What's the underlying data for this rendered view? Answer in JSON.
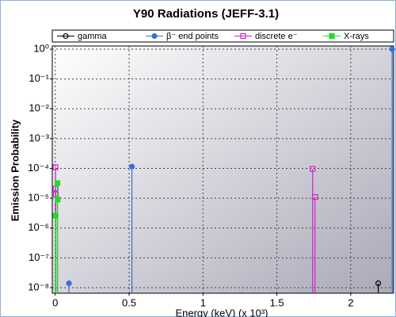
{
  "chart_data": {
    "type": "stem",
    "title": "Y90 Radiations (JEFF-3.1)",
    "x_label": "Energy (keV) (x 10³)",
    "y_label": "Emission Probability",
    "log_y": true,
    "grid": true,
    "legend": "top",
    "xlim": [
      -0.02,
      2.29
    ],
    "xticks": [
      0,
      0.5,
      1,
      1.5,
      2
    ],
    "ylim": [
      6.5e-09,
      1.28
    ],
    "yticks": [
      {
        "value": 1,
        "label": "10⁰"
      },
      {
        "value": 0.1,
        "label": "10⁻¹"
      },
      {
        "value": 0.01,
        "label": "10⁻²"
      },
      {
        "value": 0.001,
        "label": "10⁻³"
      },
      {
        "value": 0.0001,
        "label": "10⁻⁴"
      },
      {
        "value": 1e-05,
        "label": "10⁻⁵"
      },
      {
        "value": 1e-06,
        "label": "10⁻⁶"
      },
      {
        "value": 1e-07,
        "label": "10⁻⁷"
      },
      {
        "value": 1e-08,
        "label": "10⁻⁸"
      }
    ],
    "series": [
      {
        "name": "gamma",
        "color": "#000000",
        "marker": "circle",
        "filled": false,
        "x": [
          2.186
        ],
        "values": [
          1.4e-08
        ]
      },
      {
        "name": "β⁻ end points",
        "color": "#3a6fd8",
        "marker": "circle",
        "filled": true,
        "x": [
          0.093,
          0.519,
          2.28
        ],
        "values": [
          1.4e-08,
          0.000115,
          0.9999
        ]
      },
      {
        "name": "discrete e⁻",
        "color": "#cc22cc",
        "marker": "square",
        "filled": false,
        "x": [
          0.002,
          0.003,
          0.004,
          1.742,
          1.758
        ],
        "values": [
          0.00011,
          2.1e-05,
          1.35e-05,
          9.6e-05,
          1.1e-05
        ]
      },
      {
        "name": "X-rays",
        "color": "#22dd22",
        "marker": "square",
        "filled": true,
        "x": [
          0.015,
          0.016,
          0.002
        ],
        "values": [
          3.2e-05,
          9e-06,
          2.6e-06
        ]
      }
    ]
  }
}
